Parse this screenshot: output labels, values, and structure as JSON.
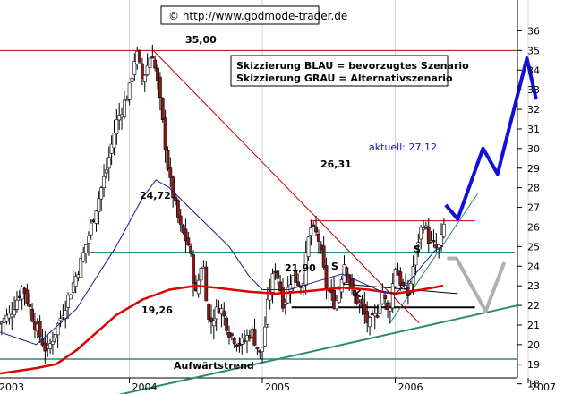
{
  "source_text": "© http://www.godmode-trader.de",
  "legend": {
    "line1": "Skizzierung BLAU = bevorzugtes Szenario",
    "line2": "Skizzierung GRAU = Alternativszenario"
  },
  "aktuell_label": "aktuell: 27,12",
  "chart_data": {
    "type": "candlestick",
    "title": "",
    "xlabel": "",
    "ylabel": "",
    "ylim": [
      17.2,
      37.0
    ],
    "y_axis_position": "right",
    "y_ticks": [
      18,
      19,
      20,
      21,
      22,
      23,
      24,
      25,
      26,
      27,
      28,
      29,
      30,
      31,
      32,
      33,
      34,
      35,
      36
    ],
    "x_ticks": [
      {
        "label": "2003",
        "t": 0.0
      },
      {
        "label": "2004",
        "t": 1.0
      },
      {
        "label": "2005",
        "t": 2.0
      },
      {
        "label": "2006",
        "t": 3.0
      },
      {
        "label": "2007",
        "t": 4.0
      }
    ],
    "levels": [
      {
        "label": "35,00",
        "value": 35.0
      },
      {
        "label": "26,31",
        "value": 26.31
      },
      {
        "label": "24,72",
        "value": 24.72
      },
      {
        "label": "21,90",
        "value": 21.9
      },
      {
        "label": "19,26",
        "value": 19.26
      }
    ],
    "annotations": [
      "S",
      "S",
      "K",
      "Aufwärtstrend"
    ],
    "price_anchors": [
      [
        0.0,
        21.0
      ],
      [
        0.1,
        21.5
      ],
      [
        0.2,
        23.0
      ],
      [
        0.28,
        21.2
      ],
      [
        0.38,
        19.6
      ],
      [
        0.45,
        20.8
      ],
      [
        0.55,
        22.6
      ],
      [
        0.65,
        24.5
      ],
      [
        0.75,
        27.0
      ],
      [
        0.83,
        29.0
      ],
      [
        0.9,
        31.3
      ],
      [
        1.0,
        33.0
      ],
      [
        1.05,
        35.0
      ],
      [
        1.1,
        33.5
      ],
      [
        1.17,
        35.0
      ],
      [
        1.22,
        33.0
      ],
      [
        1.3,
        28.5
      ],
      [
        1.38,
        26.0
      ],
      [
        1.45,
        25.0
      ],
      [
        1.5,
        22.5
      ],
      [
        1.55,
        24.5
      ],
      [
        1.6,
        21.0
      ],
      [
        1.68,
        22.0
      ],
      [
        1.76,
        20.5
      ],
      [
        1.84,
        20.0
      ],
      [
        1.92,
        20.7
      ],
      [
        1.99,
        19.3
      ],
      [
        2.05,
        22.6
      ],
      [
        2.1,
        24.0
      ],
      [
        2.16,
        22.0
      ],
      [
        2.22,
        23.5
      ],
      [
        2.3,
        23.0
      ],
      [
        2.36,
        26.0
      ],
      [
        2.42,
        25.5
      ],
      [
        2.48,
        23.0
      ],
      [
        2.55,
        22.0
      ],
      [
        2.62,
        24.3
      ],
      [
        2.68,
        22.5
      ],
      [
        2.74,
        22.0
      ],
      [
        2.8,
        21.0
      ],
      [
        2.86,
        21.5
      ],
      [
        2.9,
        22.8
      ],
      [
        2.95,
        21.5
      ],
      [
        3.0,
        24.0
      ],
      [
        3.05,
        23.0
      ],
      [
        3.1,
        22.5
      ],
      [
        3.16,
        25.0
      ],
      [
        3.21,
        26.3
      ],
      [
        3.26,
        25.2
      ],
      [
        3.32,
        24.8
      ],
      [
        3.36,
        25.6
      ],
      [
        3.38,
        27.12
      ]
    ],
    "ma_fast": [
      [
        0.0,
        20.7
      ],
      [
        0.3,
        20.0
      ],
      [
        0.6,
        21.8
      ],
      [
        0.9,
        25.0
      ],
      [
        1.1,
        27.5
      ],
      [
        1.2,
        28.4
      ],
      [
        1.3,
        28.0
      ],
      [
        1.45,
        27.0
      ],
      [
        1.6,
        26.0
      ],
      [
        1.75,
        25.0
      ],
      [
        1.9,
        23.5
      ],
      [
        2.0,
        22.8
      ],
      [
        2.2,
        22.8
      ],
      [
        2.4,
        23.2
      ],
      [
        2.6,
        23.6
      ],
      [
        2.8,
        23.0
      ],
      [
        2.9,
        22.7
      ],
      [
        3.0,
        22.6
      ],
      [
        3.1,
        23.2
      ],
      [
        3.2,
        24.0
      ],
      [
        3.3,
        24.8
      ],
      [
        3.36,
        25.0
      ]
    ],
    "ma_slow": [
      [
        0.0,
        18.5
      ],
      [
        0.3,
        18.8
      ],
      [
        0.45,
        19.0
      ],
      [
        0.6,
        19.7
      ],
      [
        0.9,
        21.5
      ],
      [
        1.1,
        22.3
      ],
      [
        1.3,
        22.8
      ],
      [
        1.5,
        23.0
      ],
      [
        1.65,
        22.9
      ],
      [
        1.9,
        22.7
      ],
      [
        2.1,
        22.6
      ],
      [
        2.3,
        22.7
      ],
      [
        2.6,
        22.9
      ],
      [
        2.8,
        22.8
      ],
      [
        3.0,
        22.6
      ],
      [
        3.2,
        22.8
      ],
      [
        3.36,
        23.0
      ]
    ],
    "scenario_blue": [
      [
        3.38,
        27.12
      ],
      [
        3.47,
        26.4
      ],
      [
        3.66,
        30.0
      ],
      [
        3.77,
        28.7
      ],
      [
        3.99,
        34.6
      ],
      [
        4.06,
        32.5
      ]
    ],
    "scenario_gray": [
      [
        3.39,
        24.4
      ],
      [
        3.46,
        24.4
      ],
      [
        3.68,
        21.7
      ],
      [
        3.82,
        24.2
      ]
    ],
    "colors": {
      "bar_up": "#ffffff",
      "bar_down": "#8b1a1a",
      "ma_fast": "#1a1a8c",
      "ma_slow": "#dd0000",
      "resistance": "#c00000",
      "support": "#2a8a7a",
      "scenario_blue": "#1010dd",
      "scenario_gray": "#b0b0b0"
    }
  }
}
